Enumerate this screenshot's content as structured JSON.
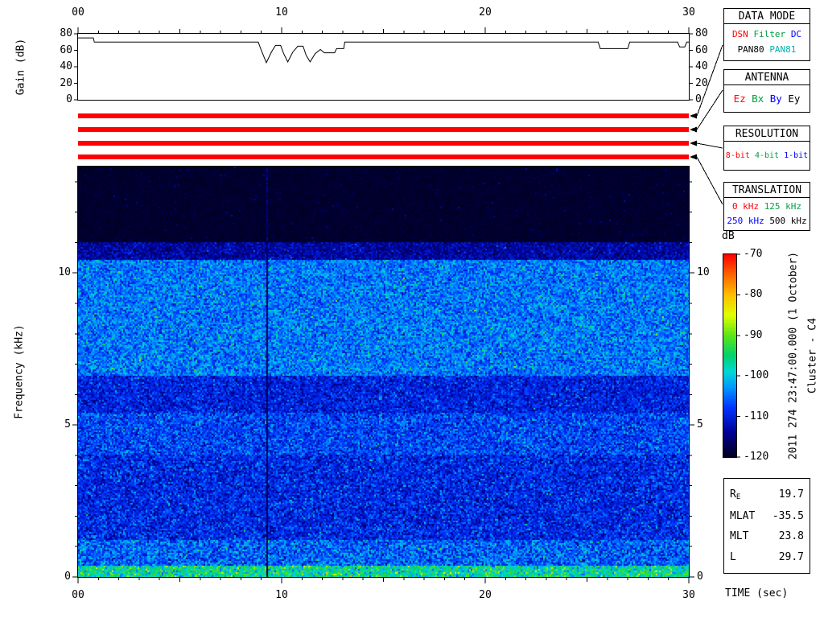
{
  "gain_plot": {
    "ylabel": "Gain (dB)",
    "x_tick_labels": [
      "00",
      "10",
      "20",
      "30"
    ],
    "x_tick_values": [
      0,
      10,
      20,
      30
    ],
    "y_tick_labels": [
      "0",
      "20",
      "40",
      "60",
      "80"
    ],
    "y_tick_values": [
      0,
      20,
      40,
      60,
      80
    ],
    "xlim": [
      0,
      30
    ],
    "ylim": [
      0,
      80
    ]
  },
  "spectrogram": {
    "ylabel": "Frequency (kHz)",
    "xlabel": "TIME (sec)",
    "x_tick_labels": [
      "00",
      "10",
      "20",
      "30"
    ],
    "x_tick_values": [
      0,
      10,
      20,
      30
    ],
    "y_tick_labels": [
      "0",
      "5",
      "10"
    ],
    "y_tick_values": [
      0,
      5,
      10
    ],
    "xlim": [
      0,
      30
    ],
    "f_max_khz": 13.5
  },
  "status_bars": {
    "color": "#ff0000",
    "count": 4,
    "targets": [
      "DATA MODE",
      "ANTENNA",
      "RESOLUTION",
      "TRANSLATION"
    ]
  },
  "panels": {
    "data_mode": {
      "title": "DATA MODE",
      "rows": [
        [
          {
            "text": "DSN",
            "color": "#ff0000"
          },
          {
            "text": "Filter",
            "color": "#00a040"
          },
          {
            "text": "DC",
            "color": "#0000ff"
          }
        ],
        [
          {
            "text": "PAN80",
            "color": "#000000"
          },
          {
            "text": "PAN81",
            "color": "#00b0b0"
          }
        ]
      ]
    },
    "antenna": {
      "title": "ANTENNA",
      "rows": [
        [
          {
            "text": "Ez",
            "color": "#ff0000"
          },
          {
            "text": "Bx",
            "color": "#00a040"
          },
          {
            "text": "By",
            "color": "#0000ff"
          },
          {
            "text": "Ey",
            "color": "#000000"
          }
        ]
      ]
    },
    "resolution": {
      "title": "RESOLUTION",
      "rows": [
        [
          {
            "text": "8-bit",
            "color": "#ff0000"
          },
          {
            "text": "4-bit",
            "color": "#00a040"
          },
          {
            "text": "1-bit",
            "color": "#0000ff"
          }
        ]
      ]
    },
    "translation": {
      "title": "TRANSLATION",
      "rows": [
        [
          {
            "text": "0 kHz",
            "color": "#ff0000"
          },
          {
            "text": "125 kHz",
            "color": "#00a040"
          }
        ],
        [
          {
            "text": "250 kHz",
            "color": "#0000ff"
          },
          {
            "text": "500 kHz",
            "color": "#000000"
          }
        ]
      ]
    }
  },
  "colorbar": {
    "label": "dB",
    "min_db": -120,
    "max_db": -70,
    "tick_values": [
      -70,
      -80,
      -90,
      -100,
      -110,
      -120
    ],
    "tick_labels": [
      "-70",
      "-80",
      "-90",
      "-100",
      "-110",
      "-120"
    ]
  },
  "annotations": {
    "timestamp": "2011 274 23:47:00.000 (1 October)",
    "spacecraft": "Cluster - C4"
  },
  "ephemeris": {
    "rows": [
      {
        "label": "R",
        "sub": "E",
        "value": "19.7"
      },
      {
        "label": "MLAT",
        "sub": "",
        "value": "-35.5"
      },
      {
        "label": "MLT",
        "sub": "",
        "value": "23.8"
      },
      {
        "label": "L",
        "sub": "",
        "value": "29.7"
      }
    ]
  },
  "chart_data": [
    {
      "type": "line",
      "name": "receiver-gain",
      "ylabel": "Gain (dB)",
      "xlabel": "TIME (sec)",
      "xlim": [
        0,
        30
      ],
      "ylim": [
        0,
        80
      ],
      "x_ticks": [
        0,
        10,
        20,
        30
      ],
      "y_ticks": [
        0,
        20,
        40,
        60,
        80
      ],
      "series": [
        {
          "name": "gain_db",
          "points": [
            [
              0,
              75
            ],
            [
              0.75,
              75
            ],
            [
              0.8,
              70
            ],
            [
              8.85,
              70
            ],
            [
              9.0,
              60
            ],
            [
              9.25,
              45
            ],
            [
              9.5,
              58
            ],
            [
              9.7,
              66
            ],
            [
              9.95,
              66
            ],
            [
              10.1,
              56
            ],
            [
              10.3,
              46
            ],
            [
              10.55,
              58
            ],
            [
              10.8,
              65
            ],
            [
              11.05,
              65
            ],
            [
              11.2,
              54
            ],
            [
              11.4,
              46
            ],
            [
              11.65,
              56
            ],
            [
              11.9,
              61
            ],
            [
              12.1,
              57
            ],
            [
              12.6,
              57
            ],
            [
              12.7,
              62
            ],
            [
              13.05,
              62
            ],
            [
              13.1,
              70
            ],
            [
              25.55,
              70
            ],
            [
              25.65,
              62
            ],
            [
              27.0,
              62
            ],
            [
              27.1,
              70
            ],
            [
              29.45,
              70
            ],
            [
              29.55,
              64
            ],
            [
              29.8,
              64
            ],
            [
              29.9,
              70
            ],
            [
              30,
              70
            ]
          ]
        }
      ]
    },
    {
      "type": "heatmap",
      "name": "wideband-spectrogram",
      "xlabel": "TIME (sec)",
      "ylabel": "Frequency (kHz)",
      "xlim": [
        0,
        30
      ],
      "ylim_khz": [
        0,
        13.5
      ],
      "value_range_db": [
        -120,
        -70
      ],
      "legend_position": "right-colorbar",
      "noise_bands": [
        {
          "f0": 11.0,
          "f1": 13.5,
          "mean": -119.3,
          "sigma": 0.7,
          "p": 0.012,
          "boost": 7
        },
        {
          "f0": 10.45,
          "f1": 11.0,
          "mean": -113.5,
          "sigma": 3.2,
          "p": 0.02,
          "boost": 8
        },
        {
          "f0": 6.6,
          "f1": 10.45,
          "mean": -104.8,
          "sigma": 4.6,
          "p": 0.05,
          "boost": 10
        },
        {
          "f0": 5.4,
          "f1": 6.6,
          "mean": -110.0,
          "sigma": 4.2,
          "p": 0.02,
          "boost": 8
        },
        {
          "f0": 4.0,
          "f1": 5.4,
          "mean": -107.5,
          "sigma": 4.6,
          "p": 0.03,
          "boost": 9
        },
        {
          "f0": 1.2,
          "f1": 4.0,
          "mean": -109.5,
          "sigma": 4.6,
          "p": 0.03,
          "boost": 10
        },
        {
          "f0": 0.35,
          "f1": 1.2,
          "mean": -106.0,
          "sigma": 5.2,
          "p": 0.05,
          "boost": 10
        },
        {
          "f0": 0.0,
          "f1": 0.35,
          "mean": -97.0,
          "sigma": 6.0,
          "p": 0.1,
          "boost": 10
        }
      ],
      "features": [
        {
          "type": "dropout_column",
          "t_sec": 9.3
        },
        {
          "type": "noise_floor_region",
          "above_khz": 11.0
        }
      ],
      "colormap_stops": [
        [
          -120,
          0,
          0,
          32
        ],
        [
          -114,
          0,
          0,
          150
        ],
        [
          -108,
          0,
          50,
          255
        ],
        [
          -103,
          0,
          150,
          255
        ],
        [
          -99,
          0,
          215,
          215
        ],
        [
          -95,
          0,
          210,
          110
        ],
        [
          -90,
          90,
          230,
          20
        ],
        [
          -85,
          225,
          255,
          0
        ],
        [
          -80,
          255,
          190,
          0
        ],
        [
          -75,
          255,
          100,
          0
        ],
        [
          -70,
          255,
          0,
          0
        ]
      ]
    }
  ]
}
